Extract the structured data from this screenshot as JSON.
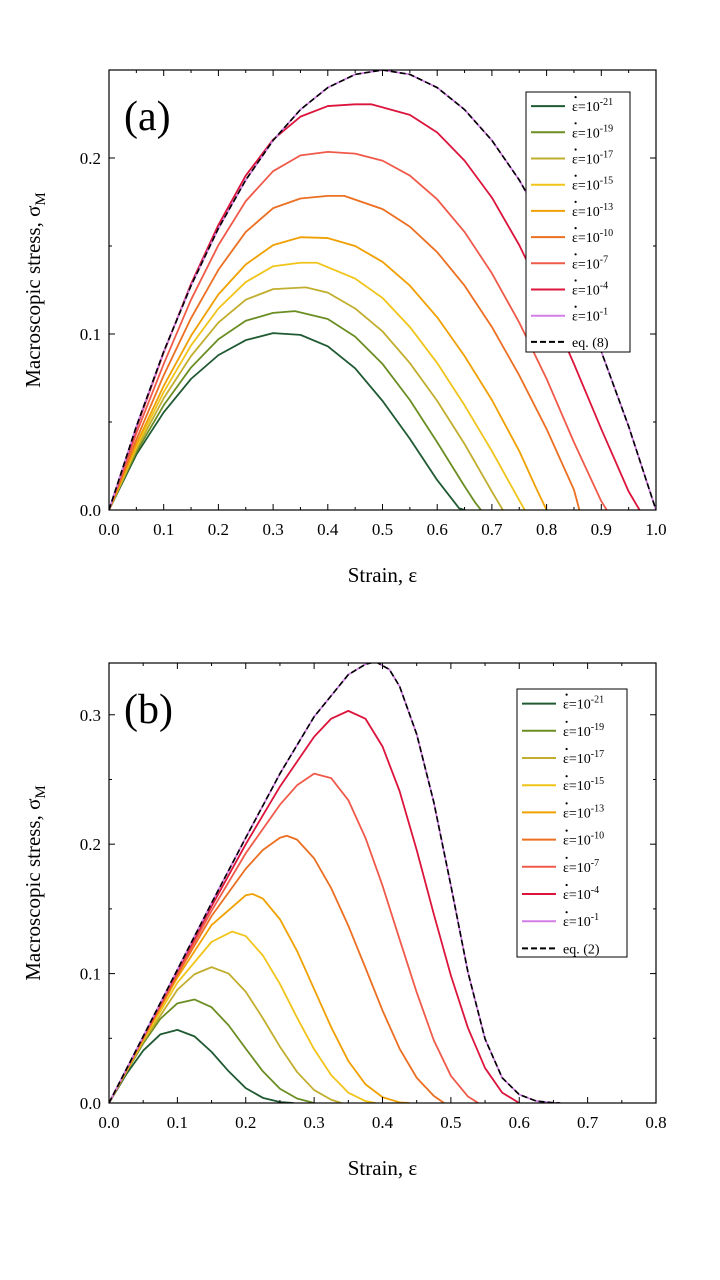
{
  "chart_data": [
    {
      "panel_label": "(a)",
      "type": "line",
      "xlabel": "Strain, ε",
      "ylabel": "Macroscopic stress, σ",
      "ylabel_sub": "M",
      "xlim": [
        0,
        1.0
      ],
      "ylim": [
        0,
        0.25
      ],
      "xticks": [
        0.0,
        0.1,
        0.2,
        0.3,
        0.4,
        0.5,
        0.6,
        0.7,
        0.8,
        0.9,
        1.0
      ],
      "xtick_labels": [
        "0.0",
        "0.1",
        "0.2",
        "0.3",
        "0.4",
        "0.5",
        "0.6",
        "0.7",
        "0.8",
        "0.9",
        "1.0"
      ],
      "yticks": [
        0.0,
        0.1,
        0.2
      ],
      "ytick_labels": [
        "0.0",
        "0.1",
        "0.2"
      ],
      "legend_position": "top-right",
      "series": [
        {
          "label_base": "ε=10",
          "label_exp": "-21",
          "color": "#1f5a32",
          "dashed": false,
          "x": [
            0,
            0.05,
            0.1,
            0.15,
            0.2,
            0.25,
            0.3,
            0.35,
            0.4,
            0.45,
            0.5,
            0.55,
            0.6,
            0.63,
            0.64,
            0.65
          ],
          "y": [
            0,
            0.0315,
            0.0555,
            0.0745,
            0.088,
            0.0965,
            0.1005,
            0.0995,
            0.093,
            0.0805,
            0.062,
            0.0405,
            0.017,
            0.005,
            0.001,
            0
          ]
        },
        {
          "label_base": "ε=10",
          "label_exp": "-19",
          "color": "#6b8e23",
          "dashed": false,
          "x": [
            0,
            0.05,
            0.1,
            0.15,
            0.2,
            0.25,
            0.3,
            0.34,
            0.4,
            0.45,
            0.5,
            0.55,
            0.6,
            0.65,
            0.67,
            0.68
          ],
          "y": [
            0,
            0.033,
            0.0595,
            0.081,
            0.097,
            0.1075,
            0.112,
            0.113,
            0.1085,
            0.0985,
            0.083,
            0.0625,
            0.0385,
            0.0135,
            0.004,
            0
          ]
        },
        {
          "label_base": "ε=10",
          "label_exp": "-17",
          "color": "#c2ae2e",
          "dashed": false,
          "x": [
            0,
            0.05,
            0.1,
            0.15,
            0.2,
            0.25,
            0.3,
            0.36,
            0.4,
            0.45,
            0.5,
            0.55,
            0.6,
            0.65,
            0.7,
            0.72
          ],
          "y": [
            0,
            0.0345,
            0.0635,
            0.0875,
            0.1065,
            0.1195,
            0.1255,
            0.1265,
            0.1235,
            0.1145,
            0.1015,
            0.0835,
            0.062,
            0.0375,
            0.0105,
            0
          ]
        },
        {
          "label_base": "ε=10",
          "label_exp": "-15",
          "color": "#f0c419",
          "dashed": false,
          "x": [
            0,
            0.05,
            0.1,
            0.15,
            0.2,
            0.25,
            0.3,
            0.35,
            0.38,
            0.45,
            0.5,
            0.55,
            0.6,
            0.65,
            0.7,
            0.75,
            0.76
          ],
          "y": [
            0,
            0.036,
            0.067,
            0.0935,
            0.1145,
            0.1295,
            0.1385,
            0.1405,
            0.1405,
            0.1315,
            0.1205,
            0.104,
            0.0835,
            0.0595,
            0.0335,
            0.0055,
            0
          ]
        },
        {
          "label_base": "ε=10",
          "label_exp": "-13",
          "color": "#f0a000",
          "dashed": false,
          "x": [
            0,
            0.05,
            0.1,
            0.15,
            0.2,
            0.25,
            0.3,
            0.35,
            0.4,
            0.45,
            0.5,
            0.55,
            0.6,
            0.65,
            0.7,
            0.75,
            0.78,
            0.8
          ],
          "y": [
            0,
            0.0375,
            0.0705,
            0.099,
            0.1225,
            0.1395,
            0.1505,
            0.155,
            0.1545,
            0.15,
            0.141,
            0.1275,
            0.1095,
            0.0875,
            0.0625,
            0.0335,
            0.013,
            0
          ]
        },
        {
          "label_base": "ε=10",
          "label_exp": "-10",
          "color": "#ec6f22",
          "dashed": false,
          "x": [
            0,
            0.05,
            0.1,
            0.15,
            0.2,
            0.25,
            0.3,
            0.35,
            0.4,
            0.43,
            0.5,
            0.55,
            0.6,
            0.65,
            0.7,
            0.75,
            0.8,
            0.85,
            0.86
          ],
          "y": [
            0,
            0.04,
            0.0765,
            0.109,
            0.1365,
            0.158,
            0.1715,
            0.177,
            0.1785,
            0.1785,
            0.171,
            0.161,
            0.1465,
            0.1275,
            0.104,
            0.0765,
            0.046,
            0.0115,
            0
          ]
        },
        {
          "label_base": "ε=10",
          "label_exp": "-7",
          "color": "#f05a4a",
          "dashed": false,
          "x": [
            0,
            0.05,
            0.1,
            0.15,
            0.2,
            0.25,
            0.3,
            0.35,
            0.4,
            0.45,
            0.5,
            0.55,
            0.6,
            0.65,
            0.7,
            0.75,
            0.8,
            0.85,
            0.9,
            0.91
          ],
          "y": [
            0,
            0.0435,
            0.083,
            0.1195,
            0.1505,
            0.1755,
            0.1925,
            0.2015,
            0.2035,
            0.2025,
            0.1985,
            0.19,
            0.1765,
            0.158,
            0.1345,
            0.1065,
            0.0745,
            0.0385,
            0.005,
            0
          ]
        },
        {
          "label_base": "ε=10",
          "label_exp": "-4",
          "color": "#dc143c",
          "dashed": false,
          "x": [
            0,
            0.05,
            0.1,
            0.15,
            0.2,
            0.25,
            0.3,
            0.35,
            0.4,
            0.45,
            0.48,
            0.55,
            0.6,
            0.65,
            0.7,
            0.75,
            0.8,
            0.85,
            0.9,
            0.95,
            0.97
          ],
          "y": [
            0,
            0.0465,
            0.0895,
            0.1285,
            0.162,
            0.19,
            0.2105,
            0.2235,
            0.2295,
            0.2305,
            0.2305,
            0.2245,
            0.2145,
            0.1985,
            0.1775,
            0.1505,
            0.1185,
            0.083,
            0.046,
            0.0105,
            0
          ]
        },
        {
          "label_base": "ε=10",
          "label_exp": "-1",
          "color": "#d27ee6",
          "dashed": false,
          "x": [
            0,
            0.05,
            0.1,
            0.15,
            0.2,
            0.25,
            0.3,
            0.35,
            0.4,
            0.45,
            0.5,
            0.55,
            0.6,
            0.65,
            0.7,
            0.75,
            0.8,
            0.85,
            0.9,
            0.95,
            1.0
          ],
          "y": [
            0,
            0.0475,
            0.09,
            0.1275,
            0.16,
            0.1875,
            0.21,
            0.2275,
            0.24,
            0.2475,
            0.25,
            0.2475,
            0.24,
            0.2275,
            0.21,
            0.1875,
            0.16,
            0.1275,
            0.09,
            0.0475,
            0
          ]
        },
        {
          "label_base": "eq. (8)",
          "label_exp": "",
          "color": "#000000",
          "dashed": true,
          "x": [
            0,
            0.05,
            0.1,
            0.15,
            0.2,
            0.25,
            0.3,
            0.35,
            0.4,
            0.45,
            0.5,
            0.55,
            0.6,
            0.65,
            0.7,
            0.75,
            0.8,
            0.85,
            0.9,
            0.95,
            1.0
          ],
          "y": [
            0,
            0.0475,
            0.09,
            0.1275,
            0.16,
            0.1875,
            0.21,
            0.2275,
            0.24,
            0.2475,
            0.25,
            0.2475,
            0.24,
            0.2275,
            0.21,
            0.1875,
            0.16,
            0.1275,
            0.09,
            0.0475,
            0
          ]
        }
      ]
    },
    {
      "panel_label": "(b)",
      "type": "line",
      "xlabel": "Strain, ε",
      "ylabel": "Macroscopic stress, σ",
      "ylabel_sub": "M",
      "xlim": [
        0,
        0.8
      ],
      "ylim": [
        0,
        0.34
      ],
      "xticks": [
        0.0,
        0.1,
        0.2,
        0.3,
        0.4,
        0.5,
        0.6,
        0.7,
        0.8
      ],
      "xtick_labels": [
        "0.0",
        "0.1",
        "0.2",
        "0.3",
        "0.4",
        "0.5",
        "0.6",
        "0.7",
        "0.8"
      ],
      "yticks": [
        0.0,
        0.1,
        0.2,
        0.3
      ],
      "ytick_labels": [
        "0.0",
        "0.1",
        "0.2",
        "0.3"
      ],
      "legend_position": "top-right",
      "series": [
        {
          "label_base": "ε=10",
          "label_exp": "-21",
          "color": "#1f5a32",
          "dashed": false,
          "x": [
            0,
            0.025,
            0.05,
            0.075,
            0.1,
            0.125,
            0.15,
            0.175,
            0.2,
            0.225,
            0.25,
            0.27
          ],
          "y": [
            0,
            0.022,
            0.0405,
            0.053,
            0.0565,
            0.0515,
            0.0395,
            0.0245,
            0.0115,
            0.004,
            0.0008,
            0
          ]
        },
        {
          "label_base": "ε=10",
          "label_exp": "-19",
          "color": "#6b8e23",
          "dashed": false,
          "x": [
            0,
            0.025,
            0.05,
            0.075,
            0.1,
            0.125,
            0.15,
            0.175,
            0.2,
            0.225,
            0.25,
            0.275,
            0.3
          ],
          "y": [
            0,
            0.0235,
            0.046,
            0.065,
            0.077,
            0.08,
            0.074,
            0.06,
            0.042,
            0.0245,
            0.011,
            0.0035,
            0
          ]
        },
        {
          "label_base": "ε=10",
          "label_exp": "-17",
          "color": "#c2ae2e",
          "dashed": false,
          "x": [
            0,
            0.05,
            0.1,
            0.125,
            0.15,
            0.175,
            0.2,
            0.225,
            0.25,
            0.275,
            0.3,
            0.325,
            0.34
          ],
          "y": [
            0,
            0.0475,
            0.0875,
            0.0995,
            0.105,
            0.1,
            0.086,
            0.0655,
            0.0435,
            0.024,
            0.01,
            0.0025,
            0
          ]
        },
        {
          "label_base": "ε=10",
          "label_exp": "-15",
          "color": "#f0c419",
          "dashed": false,
          "x": [
            0,
            0.05,
            0.1,
            0.15,
            0.18,
            0.2,
            0.225,
            0.25,
            0.275,
            0.3,
            0.325,
            0.35,
            0.375,
            0.39
          ],
          "y": [
            0,
            0.0485,
            0.093,
            0.1245,
            0.1325,
            0.129,
            0.114,
            0.092,
            0.066,
            0.0415,
            0.0215,
            0.008,
            0.0015,
            0
          ]
        },
        {
          "label_base": "ε=10",
          "label_exp": "-13",
          "color": "#f0a000",
          "dashed": false,
          "x": [
            0,
            0.05,
            0.1,
            0.15,
            0.2,
            0.21,
            0.225,
            0.25,
            0.275,
            0.3,
            0.325,
            0.35,
            0.375,
            0.4,
            0.425,
            0.44
          ],
          "y": [
            0,
            0.0495,
            0.097,
            0.1375,
            0.1605,
            0.1615,
            0.158,
            0.142,
            0.1175,
            0.088,
            0.0585,
            0.0325,
            0.0145,
            0.0045,
            0.0005,
            0
          ]
        },
        {
          "label_base": "ε=10",
          "label_exp": "-10",
          "color": "#ec6f22",
          "dashed": false,
          "x": [
            0,
            0.05,
            0.1,
            0.15,
            0.2,
            0.225,
            0.25,
            0.26,
            0.275,
            0.3,
            0.325,
            0.35,
            0.375,
            0.4,
            0.425,
            0.45,
            0.475,
            0.49
          ],
          "y": [
            0,
            0.05,
            0.099,
            0.1445,
            0.181,
            0.1955,
            0.205,
            0.2065,
            0.2035,
            0.189,
            0.166,
            0.137,
            0.1045,
            0.0715,
            0.042,
            0.0195,
            0.0055,
            0
          ]
        },
        {
          "label_base": "ε=10",
          "label_exp": "-7",
          "color": "#f05a4a",
          "dashed": false,
          "x": [
            0,
            0.05,
            0.1,
            0.15,
            0.2,
            0.25,
            0.275,
            0.3,
            0.325,
            0.35,
            0.375,
            0.4,
            0.425,
            0.45,
            0.475,
            0.5,
            0.525,
            0.54
          ],
          "y": [
            0,
            0.0505,
            0.1005,
            0.1485,
            0.193,
            0.2305,
            0.2455,
            0.2545,
            0.251,
            0.234,
            0.205,
            0.168,
            0.1265,
            0.0855,
            0.0485,
            0.021,
            0.005,
            0
          ]
        },
        {
          "label_base": "ε=10",
          "label_exp": "-4",
          "color": "#dc143c",
          "dashed": false,
          "x": [
            0,
            0.05,
            0.1,
            0.15,
            0.2,
            0.25,
            0.3,
            0.325,
            0.35,
            0.375,
            0.4,
            0.425,
            0.45,
            0.475,
            0.5,
            0.525,
            0.55,
            0.575,
            0.6
          ],
          "y": [
            0,
            0.051,
            0.102,
            0.152,
            0.2,
            0.2445,
            0.283,
            0.297,
            0.303,
            0.297,
            0.2755,
            0.241,
            0.1955,
            0.146,
            0.0985,
            0.058,
            0.027,
            0.008,
            0
          ]
        },
        {
          "label_base": "ε=10",
          "label_exp": "-1",
          "color": "#d27ee6",
          "dashed": false,
          "x": [
            0,
            0.05,
            0.1,
            0.15,
            0.2,
            0.25,
            0.3,
            0.35,
            0.375,
            0.39,
            0.41,
            0.425,
            0.45,
            0.475,
            0.5,
            0.525,
            0.55,
            0.575,
            0.6,
            0.625,
            0.65,
            0.66
          ],
          "y": [
            0,
            0.0515,
            0.103,
            0.1545,
            0.205,
            0.2545,
            0.2985,
            0.331,
            0.339,
            0.341,
            0.335,
            0.322,
            0.285,
            0.2325,
            0.168,
            0.101,
            0.0495,
            0.0195,
            0.0065,
            0.0015,
            0.0002,
            0
          ]
        },
        {
          "label_base": "eq. (2)",
          "label_exp": "",
          "color": "#000000",
          "dashed": true,
          "x": [
            0,
            0.05,
            0.1,
            0.15,
            0.2,
            0.25,
            0.3,
            0.35,
            0.375,
            0.39,
            0.41,
            0.425,
            0.45,
            0.475,
            0.5,
            0.525,
            0.55,
            0.575,
            0.6,
            0.625,
            0.65,
            0.66
          ],
          "y": [
            0,
            0.0515,
            0.103,
            0.1545,
            0.205,
            0.2545,
            0.2985,
            0.331,
            0.339,
            0.341,
            0.335,
            0.322,
            0.285,
            0.2325,
            0.168,
            0.101,
            0.0495,
            0.0195,
            0.0065,
            0.0015,
            0.0002,
            0
          ]
        }
      ]
    }
  ]
}
